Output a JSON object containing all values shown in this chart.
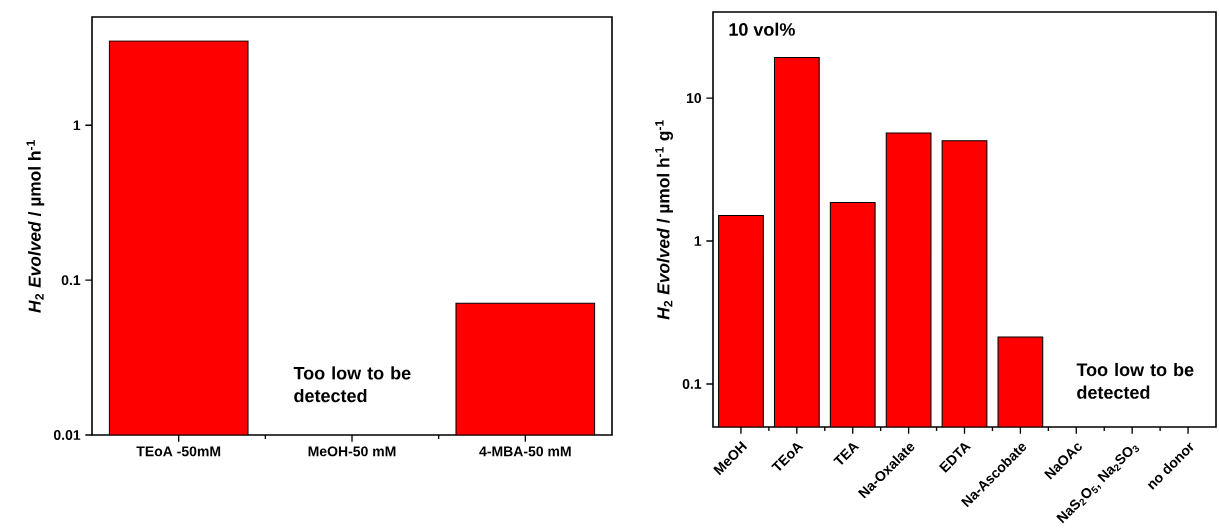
{
  "chart_data": [
    {
      "type": "bar",
      "ylabel": "*H*$_{2}$ *Evolved* / µmol h$^{-1}$",
      "categories": [
        "TEoA -50mM",
        "MeOH-50 mM",
        "4-MBA-50 mM"
      ],
      "values": [
        3.5,
        null,
        0.071
      ],
      "color": "#ff0000",
      "log": true,
      "ylim": [
        0.01,
        5
      ],
      "yticks": [
        0.01,
        0.1,
        1
      ],
      "annotations": [
        "Too low to be detected"
      ]
    },
    {
      "type": "bar",
      "ylabel": "*H*$_{2}$ *Evolved* / µmol h$^{-1}$ g$^{-1}$",
      "categories": [
        "MeOH",
        "TEoA",
        "TEA",
        "Na-Oxalate",
        "EDTA",
        "Na-Ascobate",
        "NaOAc",
        "NaS$_{2}$O$_{5}$, Na$_{2}$SO$_{3}$",
        "no donor"
      ],
      "values": [
        1.51,
        19.2,
        1.86,
        5.69,
        5.03,
        0.213,
        null,
        null,
        null
      ],
      "color": "#ff0000",
      "log": true,
      "ylim": [
        0.05,
        40
      ],
      "yticks": [
        0.1,
        1,
        10
      ],
      "annotations": [
        "10 vol%",
        "Too low to be detected"
      ]
    }
  ]
}
